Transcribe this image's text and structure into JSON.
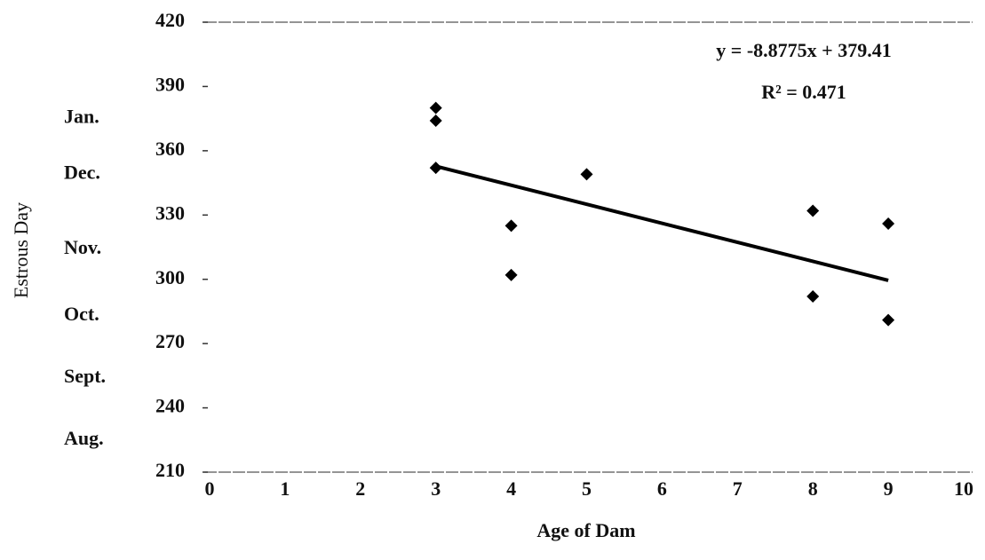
{
  "chart_data": {
    "type": "scatter",
    "x_label": "Age of Dam",
    "y_label": "Estrous Day",
    "series": [
      {
        "color": "#000000",
        "x": [
          3,
          3,
          3,
          4,
          4,
          5,
          8,
          8,
          9,
          9
        ],
        "values": [
          380,
          374,
          352,
          325,
          302,
          349,
          332,
          292,
          326,
          281
        ]
      }
    ],
    "trendline": {
      "slope": -8.8775,
      "intercept": 379.41,
      "label": "y = -8.8775x + 379.41",
      "r2_label": "R² = 0.471"
    },
    "month_labels": [
      {
        "value": 375,
        "label": "Jan."
      },
      {
        "value": 349,
        "label": "Dec."
      },
      {
        "value": 314,
        "label": "Nov."
      },
      {
        "value": 283,
        "label": "Oct."
      },
      {
        "value": 254,
        "label": "Sept."
      },
      {
        "value": 225,
        "label": "Aug."
      }
    ],
    "xlim": [
      0,
      10
    ],
    "xticks": [
      0,
      1,
      2,
      3,
      4,
      5,
      6,
      7,
      8,
      9,
      10
    ],
    "ylim": [
      210,
      420
    ],
    "yticks": [
      210,
      240,
      270,
      300,
      330,
      360,
      390,
      420
    ],
    "grid": false
  }
}
